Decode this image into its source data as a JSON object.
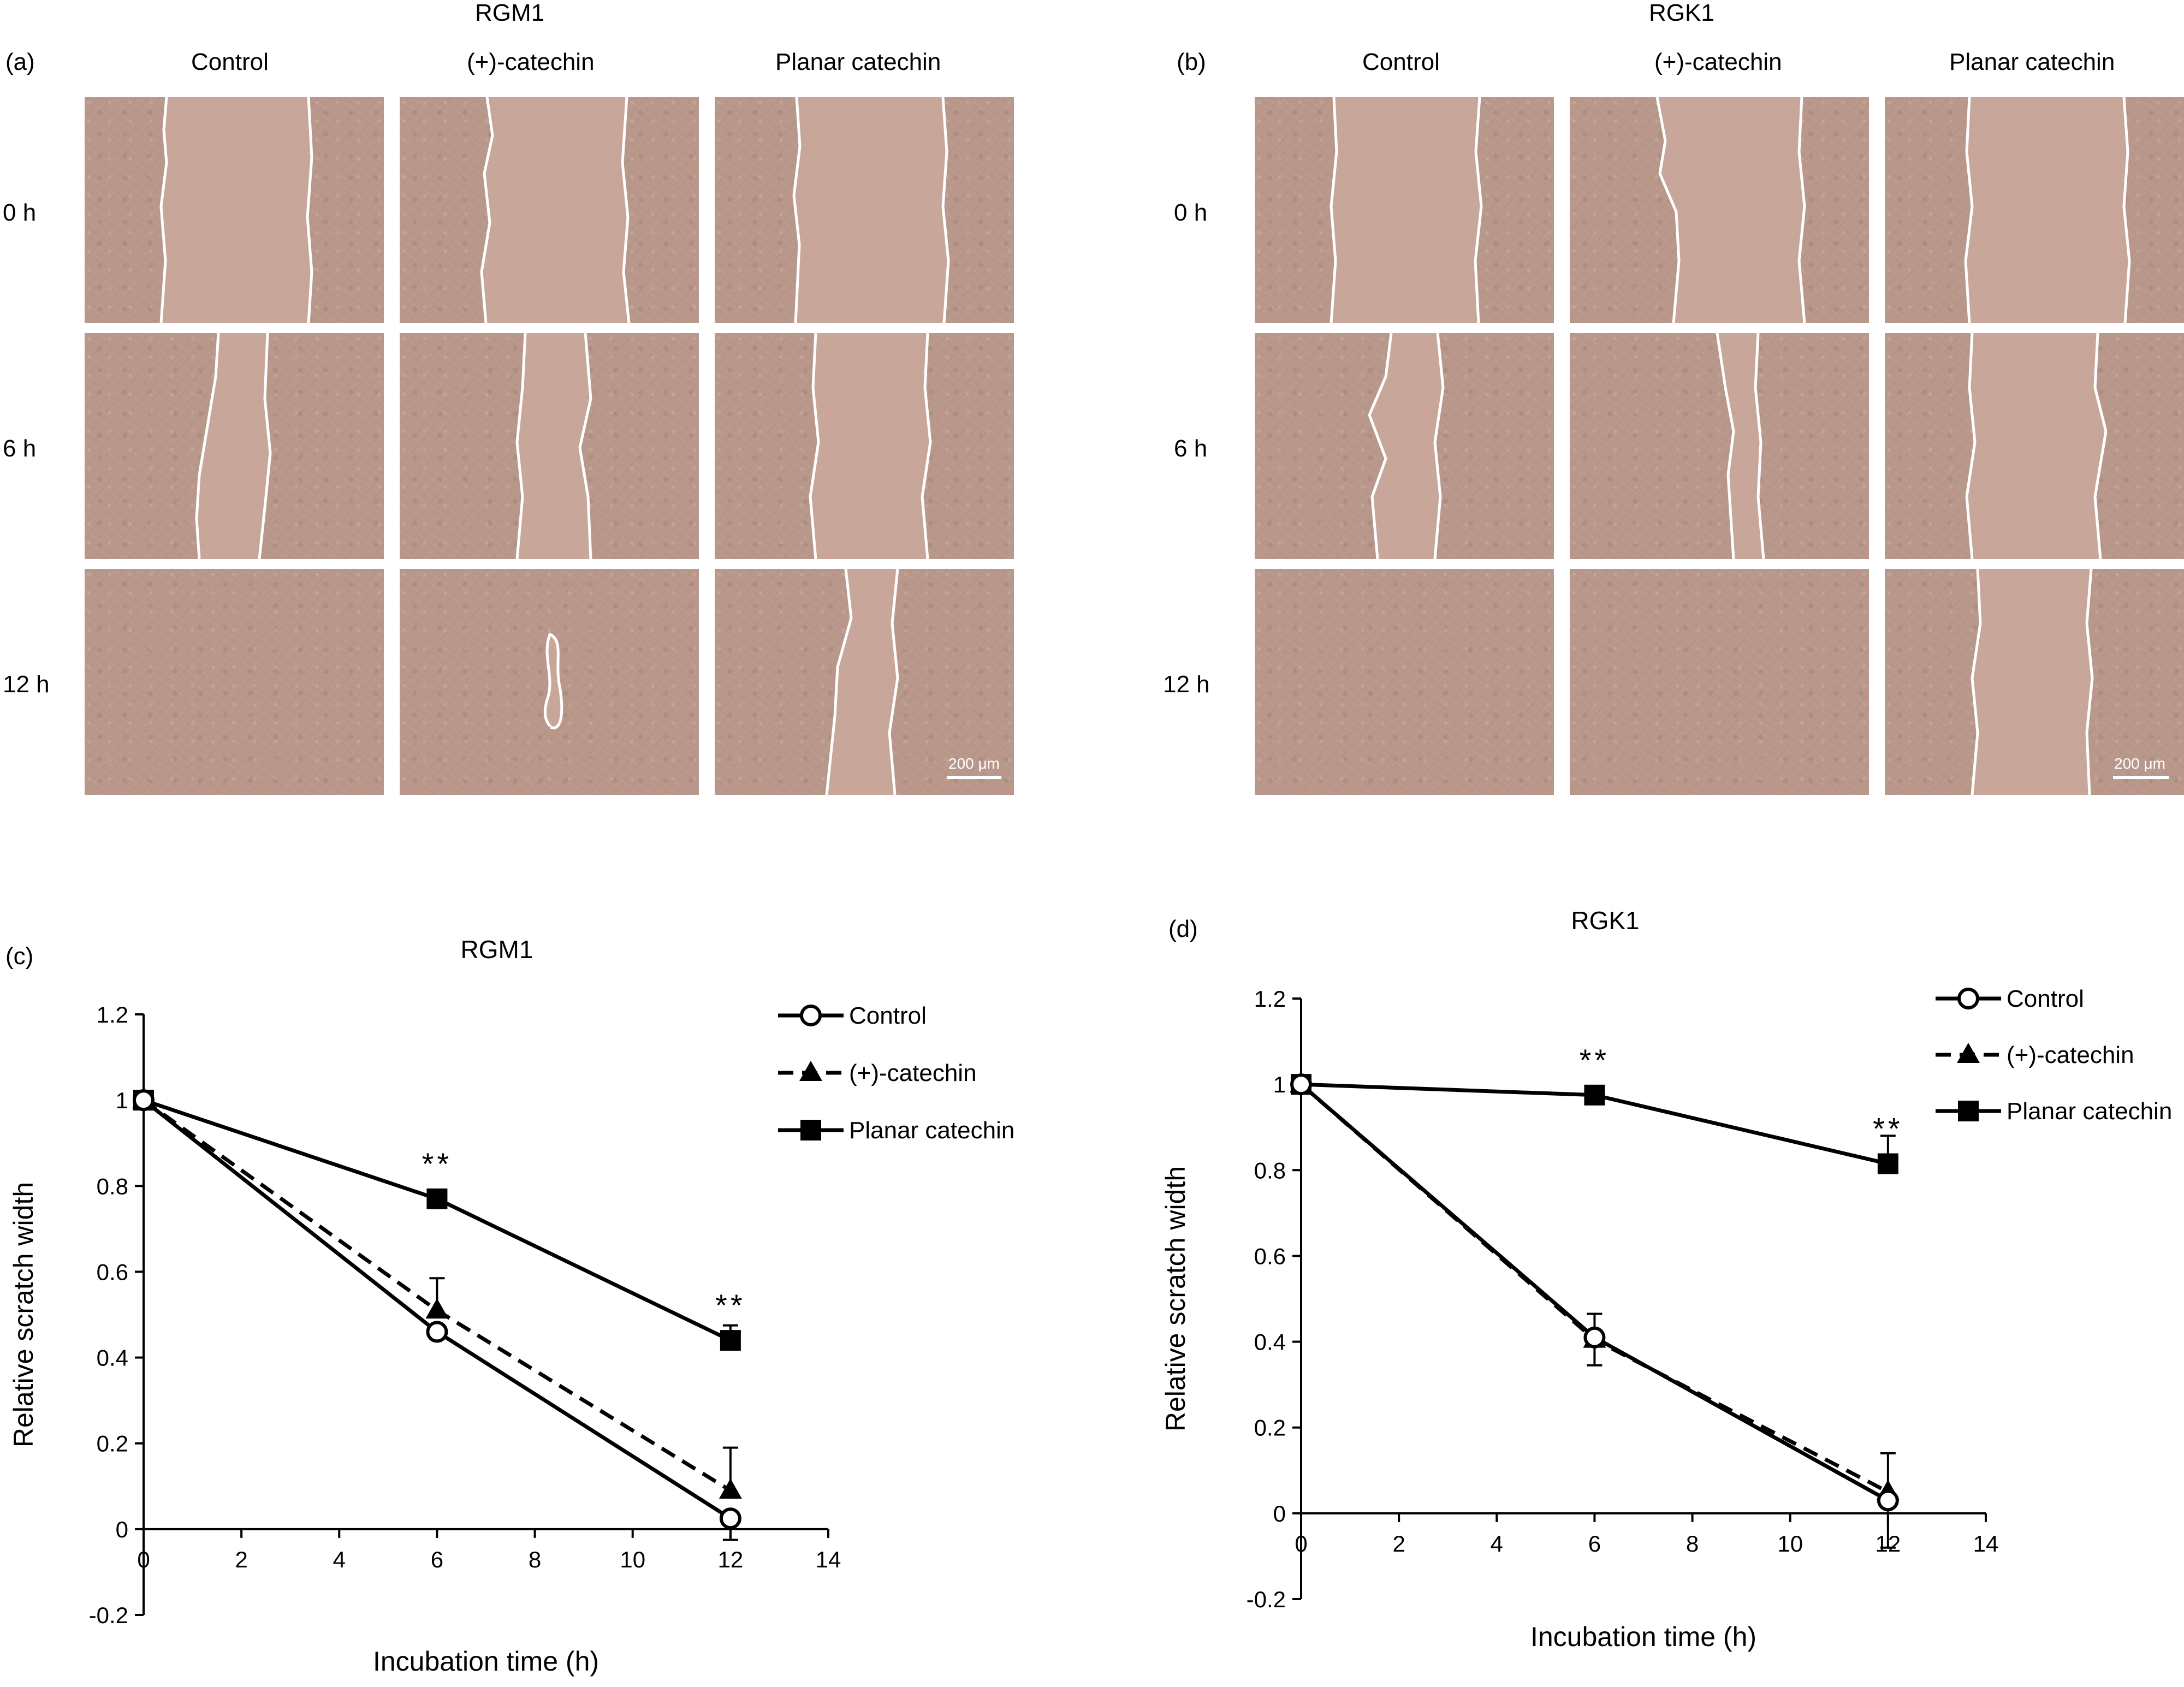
{
  "panels": {
    "a": {
      "letter": "(a)",
      "cell_line": "RGM1"
    },
    "b": {
      "letter": "(b)",
      "cell_line": "RGK1"
    },
    "c": {
      "letter": "(c)"
    },
    "d": {
      "letter": "(d)"
    }
  },
  "columns": [
    "Control",
    "(+)-catechin",
    "Planar catechin"
  ],
  "rows": [
    "0 h",
    "6 h",
    "12 h"
  ],
  "scale_bar": "200 μm",
  "chart_data": [
    {
      "type": "line",
      "title": "RGM1",
      "xlabel": "Incubation time (h)",
      "ylabel": "Relative scratch width",
      "xlim": [
        0,
        14
      ],
      "ylim": [
        -0.2,
        1.2
      ],
      "xticks": [
        "0",
        "2",
        "4",
        "6",
        "8",
        "10",
        "12",
        "14"
      ],
      "yticks": [
        "1.2",
        "1",
        "0.8",
        "0.6",
        "0.4",
        "0.2",
        "0",
        "-0.2"
      ],
      "x": [
        0,
        6,
        12
      ],
      "series": [
        {
          "name": "Control",
          "values": [
            1,
            0.46,
            0.025
          ],
          "errors": [
            0,
            0.01,
            0.05
          ],
          "marker": "open-circle",
          "line": "solid"
        },
        {
          "name": "(+)-catechin",
          "values": [
            1,
            0.51,
            0.09
          ],
          "errors": [
            0,
            0.075,
            0.1
          ],
          "marker": "triangle",
          "line": "dashed"
        },
        {
          "name": "Planar catechin",
          "values": [
            1,
            0.77,
            0.44
          ],
          "errors": [
            0,
            0.015,
            0.035
          ],
          "marker": "square",
          "line": "solid"
        }
      ],
      "annotations": [
        {
          "x": 6,
          "y": 0.77,
          "text": "**"
        },
        {
          "x": 12,
          "y": 0.44,
          "text": "**"
        }
      ],
      "legend": "top-right"
    },
    {
      "type": "line",
      "title": "RGK1",
      "xlabel": "Incubation time (h)",
      "ylabel": "Relative scratch width",
      "xlim": [
        0,
        14
      ],
      "ylim": [
        -0.2,
        1.2
      ],
      "xticks": [
        "0",
        "2",
        "4",
        "6",
        "8",
        "10",
        "12",
        "14"
      ],
      "yticks": [
        "1.2",
        "1",
        "0.8",
        "0.6",
        "0.4",
        "0.2",
        "0",
        "-0.2"
      ],
      "x": [
        0,
        6,
        12
      ],
      "series": [
        {
          "name": "Control",
          "values": [
            1,
            0.41,
            0.03
          ],
          "errors": [
            0,
            0.065,
            0.11
          ],
          "marker": "open-circle",
          "line": "solid"
        },
        {
          "name": "(+)-catechin",
          "values": [
            1,
            0.405,
            0.05
          ],
          "errors": [
            0,
            0.06,
            0.09
          ],
          "marker": "triangle",
          "line": "dashed"
        },
        {
          "name": "Planar catechin",
          "values": [
            1,
            0.975,
            0.815
          ],
          "errors": [
            0,
            0.01,
            0.065
          ],
          "marker": "square",
          "line": "solid"
        }
      ],
      "annotations": [
        {
          "x": 6,
          "y": 0.975,
          "text": "**"
        },
        {
          "x": 12,
          "y": 0.815,
          "text": "**"
        }
      ],
      "legend": "top-right"
    }
  ]
}
